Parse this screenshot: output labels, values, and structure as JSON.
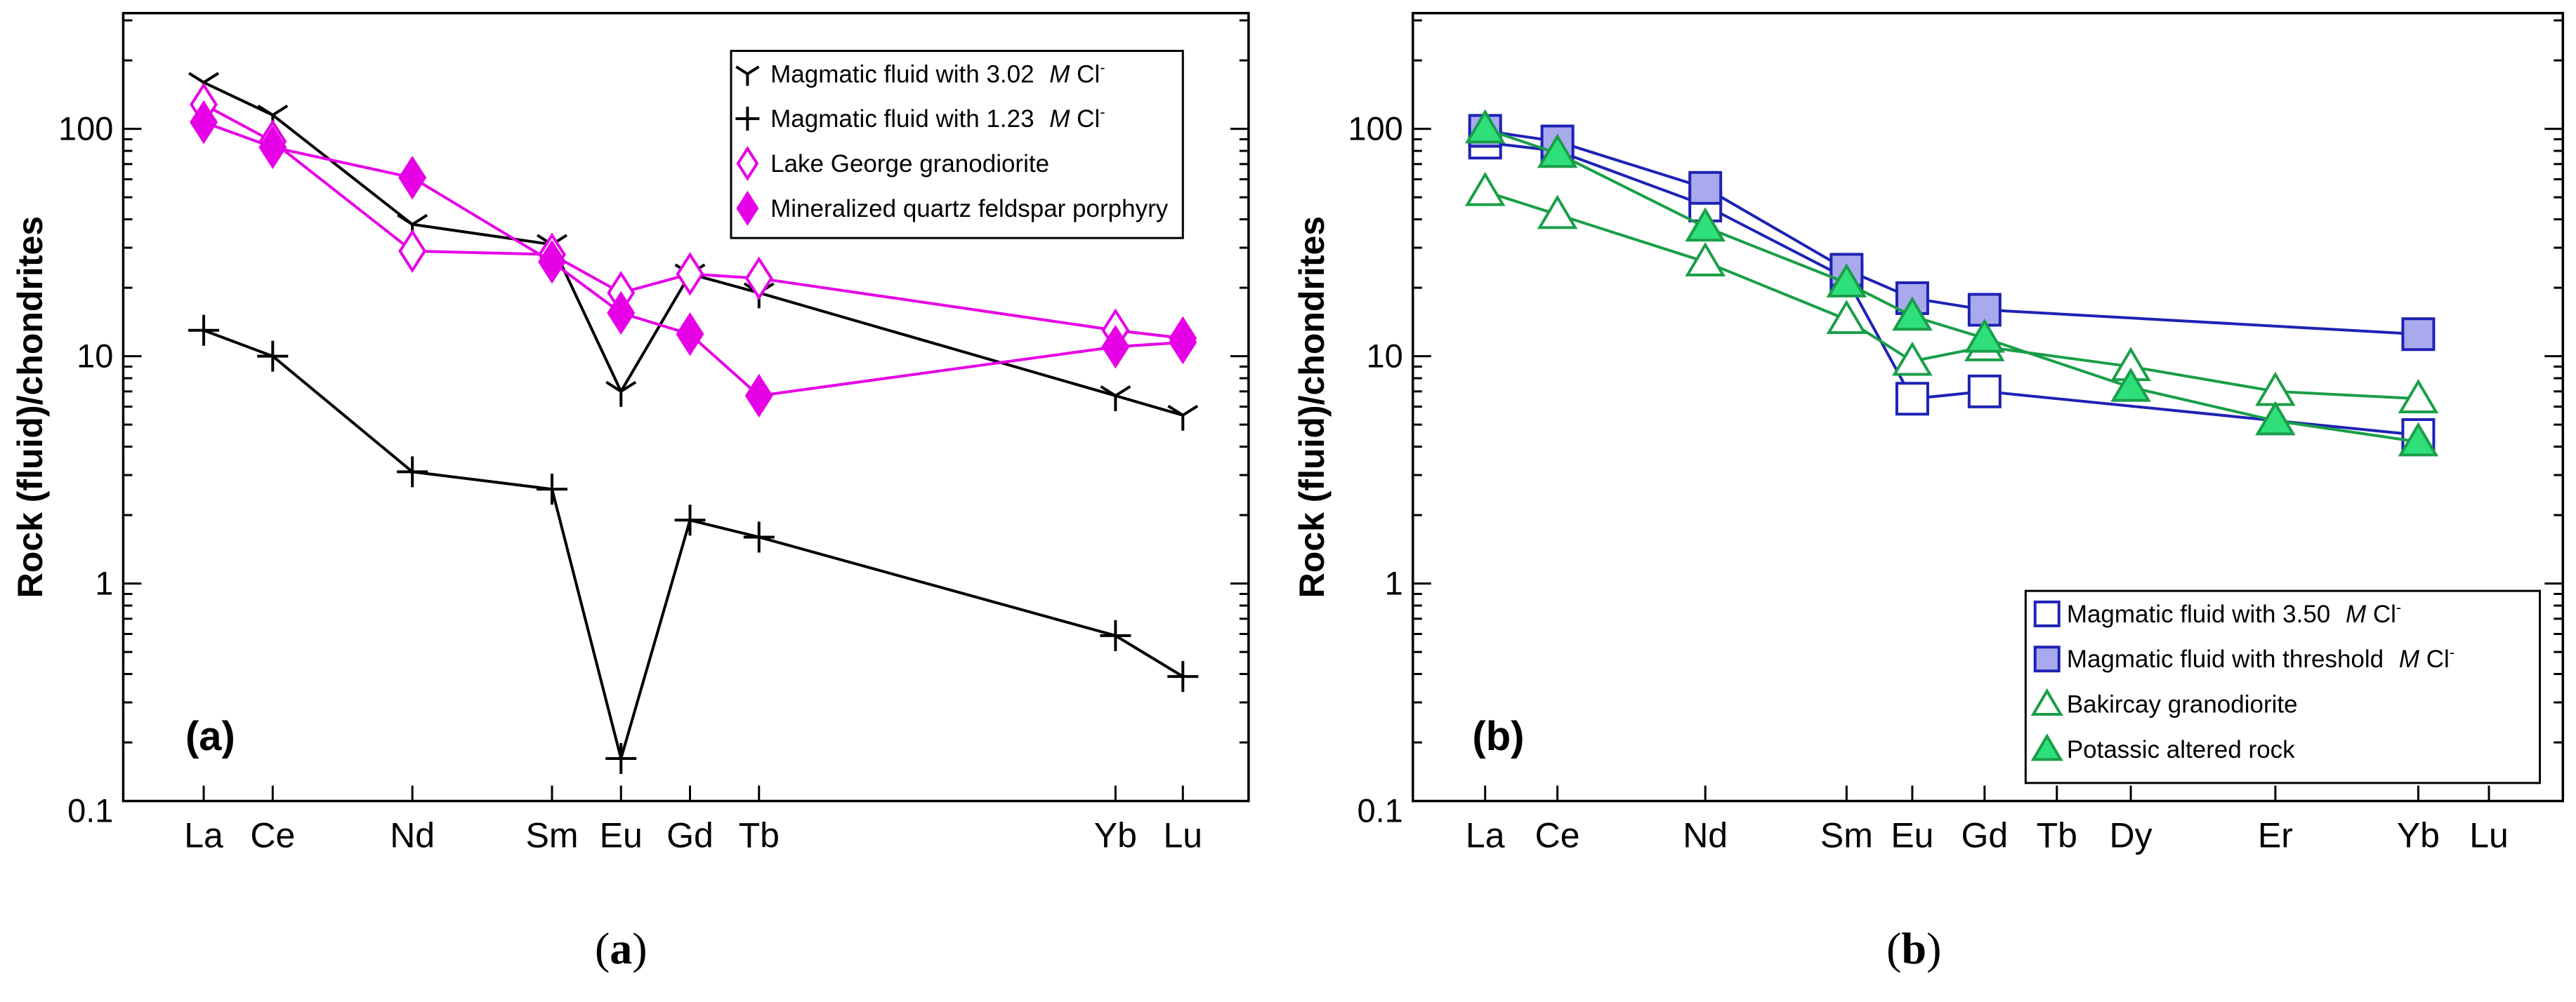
{
  "chart_data": [
    {
      "id": "a",
      "type": "line",
      "log_y": true,
      "ylim": [
        0.1,
        300
      ],
      "ylabel": "Rock (fluid)/chondrites",
      "yticks": [
        "0.1",
        "1",
        "10",
        "100"
      ],
      "categories": [
        "La",
        "Ce",
        "Nd",
        "Sm",
        "Eu",
        "Gd",
        "Tb",
        "Yb",
        "Lu"
      ],
      "panel_label": "(a)",
      "caption_letter": "a",
      "legend_position": "top-right",
      "legend": [
        {
          "text": "Magmatic fluid with 3.02 ",
          "unit_m": "M",
          "unit_cl": " Cl",
          "sup": "-"
        },
        {
          "text": "Magmatic fluid with 1.23 ",
          "unit_m": "M",
          "unit_cl": " Cl",
          "sup": "-"
        },
        {
          "text": "Lake George granodiorite"
        },
        {
          "text": "Mineralized quartz feldspar porphyry"
        }
      ],
      "series": [
        {
          "color": "#000000",
          "marker": "tri-y",
          "x": [
            "La",
            "Ce",
            "Nd",
            "Sm",
            "Eu",
            "Gd",
            "Tb",
            "Yb",
            "Lu"
          ],
          "values": [
            160,
            115,
            38,
            31,
            7,
            23,
            19,
            6.7,
            5.5
          ]
        },
        {
          "color": "#000000",
          "marker": "plus",
          "x": [
            "La",
            "Ce",
            "Nd",
            "Sm",
            "Eu",
            "Gd",
            "Tb",
            "Yb",
            "Lu"
          ],
          "values": [
            13,
            10,
            3.1,
            2.6,
            0.17,
            1.9,
            1.6,
            0.59,
            0.39
          ]
        },
        {
          "color": "#e600e6",
          "marker": "diamond-open",
          "x": [
            "La",
            "Ce",
            "Nd",
            "Sm",
            "Eu",
            "Gd",
            "Tb",
            "Yb",
            "Lu"
          ],
          "values": [
            128,
            88,
            29,
            28,
            19,
            23,
            22,
            13,
            12
          ]
        },
        {
          "color": "#e600e6",
          "marker": "diamond-filled",
          "x": [
            "La",
            "Ce",
            "Nd",
            "Sm",
            "Eu",
            "Gd",
            "Tb",
            "Yb",
            "Lu"
          ],
          "values": [
            107,
            83,
            61,
            26,
            15.5,
            12.5,
            6.7,
            11,
            11.5
          ]
        }
      ]
    },
    {
      "id": "b",
      "type": "line",
      "log_y": true,
      "ylim": [
        0.1,
        300
      ],
      "ylabel": "Rock (fluid)/chondrites",
      "yticks": [
        "0.1",
        "1",
        "10",
        "100"
      ],
      "categories": [
        "La",
        "Ce",
        "Nd",
        "Sm",
        "Eu",
        "Gd",
        "Tb",
        "Dy",
        "Er",
        "Yb",
        "Lu"
      ],
      "panel_label": "(b)",
      "caption_letter": "b",
      "legend_position": "bottom-right",
      "legend": [
        {
          "text": "Magmatic fluid with 3.50 ",
          "unit_m": "M",
          "unit_cl": " Cl",
          "sup": "-"
        },
        {
          "text": "Magmatic fluid with threshold ",
          "unit_m": "M",
          "unit_cl": " Cl",
          "sup": "-"
        },
        {
          "text": "Bakircay granodiorite"
        },
        {
          "text": "Potassic altered rock"
        }
      ],
      "series": [
        {
          "color": "#1e22b4",
          "marker": "square-open",
          "x": [
            "La",
            "Ce",
            "Nd",
            "Sm",
            "Eu",
            "Gd",
            "Yb"
          ],
          "values": [
            87,
            80,
            46,
            22,
            6.5,
            7,
            4.5
          ]
        },
        {
          "color": "#1e22b4",
          "fill": "#a9aaee",
          "marker": "square-filled",
          "x": [
            "La",
            "Ce",
            "Nd",
            "Sm",
            "Eu",
            "Gd",
            "Yb"
          ],
          "values": [
            98,
            88,
            55,
            24,
            18,
            16,
            12.5
          ]
        },
        {
          "color": "#1a9e48",
          "marker": "triangle-open",
          "x": [
            "La",
            "Ce",
            "Nd",
            "Sm",
            "Eu",
            "Gd",
            "Dy",
            "Er",
            "Yb"
          ],
          "values": [
            53,
            42,
            26,
            14.5,
            9.5,
            11,
            9,
            7,
            6.5
          ]
        },
        {
          "color": "#1a9e48",
          "fill": "#2fe07a",
          "marker": "triangle-filled",
          "x": [
            "La",
            "Ce",
            "Nd",
            "Sm",
            "Eu",
            "Gd",
            "Dy",
            "Er",
            "Yb"
          ],
          "values": [
            100,
            78,
            37,
            21,
            15,
            12,
            7.3,
            5.2,
            4.2
          ]
        }
      ]
    }
  ]
}
